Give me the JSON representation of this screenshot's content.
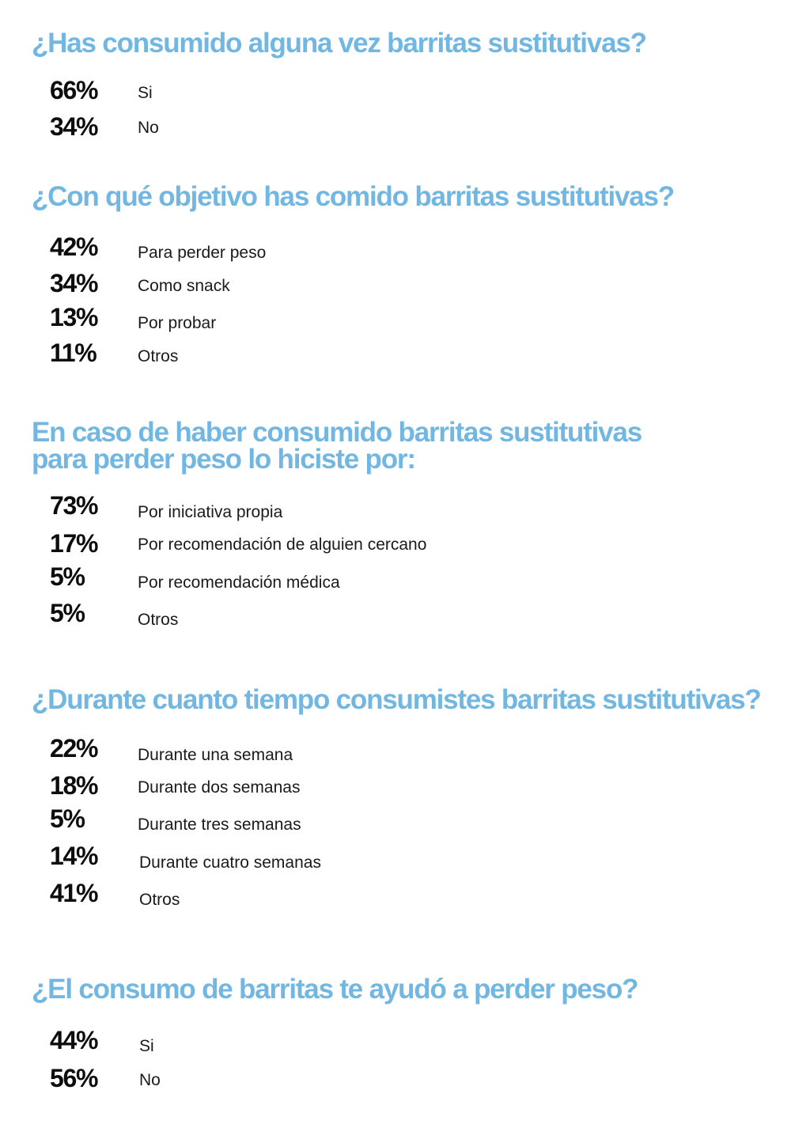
{
  "sections": [
    {
      "question": "¿Has consumido alguna vez barritas sustitutivas?",
      "answers": [
        {
          "percent": "66%",
          "label": "Si"
        },
        {
          "percent": "34%",
          "label": "No"
        }
      ]
    },
    {
      "question": "¿Con qué objetivo has comido barritas sustitutivas?",
      "answers": [
        {
          "percent": "42%",
          "label": "Para perder peso"
        },
        {
          "percent": "34%",
          "label": "Como snack"
        },
        {
          "percent": "13%",
          "label": "Por probar"
        },
        {
          "percent": "11%",
          "label": "Otros"
        }
      ]
    },
    {
      "question": "En caso de haber consumido barritas sustitutivas\npara perder peso lo hiciste por:",
      "answers": [
        {
          "percent": "73%",
          "label": "Por iniciativa propia"
        },
        {
          "percent": "17%",
          "label": "Por recomendación de alguien cercano"
        },
        {
          "percent": "5%",
          "label": "Por recomendación médica"
        },
        {
          "percent": "5%",
          "label": "Otros"
        }
      ]
    },
    {
      "question": "¿Durante cuanto tiempo consumistes barritas sustitutivas?",
      "answers": [
        {
          "percent": "22%",
          "label": "Durante una semana"
        },
        {
          "percent": "18%",
          "label": "Durante dos semanas"
        },
        {
          "percent": "5%",
          "label": "Durante tres semanas"
        },
        {
          "percent": "14%",
          "label": "Durante cuatro semanas"
        },
        {
          "percent": "41%",
          "label": "Otros"
        }
      ]
    },
    {
      "question": "¿El consumo de barritas te ayudó a perder peso?",
      "answers": [
        {
          "percent": "44%",
          "label": "Si"
        },
        {
          "percent": "56%",
          "label": "No"
        }
      ]
    }
  ],
  "colors": {
    "question": "#72b7e2",
    "percent": "#0d0d0d",
    "label": "#1a1a1a",
    "background": "#ffffff"
  }
}
